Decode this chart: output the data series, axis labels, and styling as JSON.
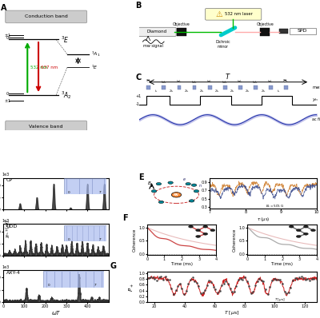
{
  "bg_color": "#ffffff",
  "panel_label_fontsize": 7,
  "green_color": "#00aa00",
  "red_color": "#cc0000",
  "mw_pulse_color": "#8899cc",
  "mw_pulse_edge": "#6677aa",
  "ac_fill_color": "#9999dd",
  "ac_line_color": "#2233aa",
  "filter_fill": "#aabbee",
  "filter_edge": "#6677aa",
  "filter_stripe": "#8899cc",
  "spectral_color": "#333333",
  "coh_red": "#cc4444",
  "coh_pink": "#ddbbbb",
  "coh_gray": "#aaaaaa",
  "g_red": "#cc2222",
  "g_dots": "#444444",
  "e_orange": "#cc8844",
  "e_blue": "#224488",
  "teal_atom": "#008899",
  "nv_orange": "#ff8833",
  "band_gray": "#cccccc",
  "band_edge": "#999999"
}
